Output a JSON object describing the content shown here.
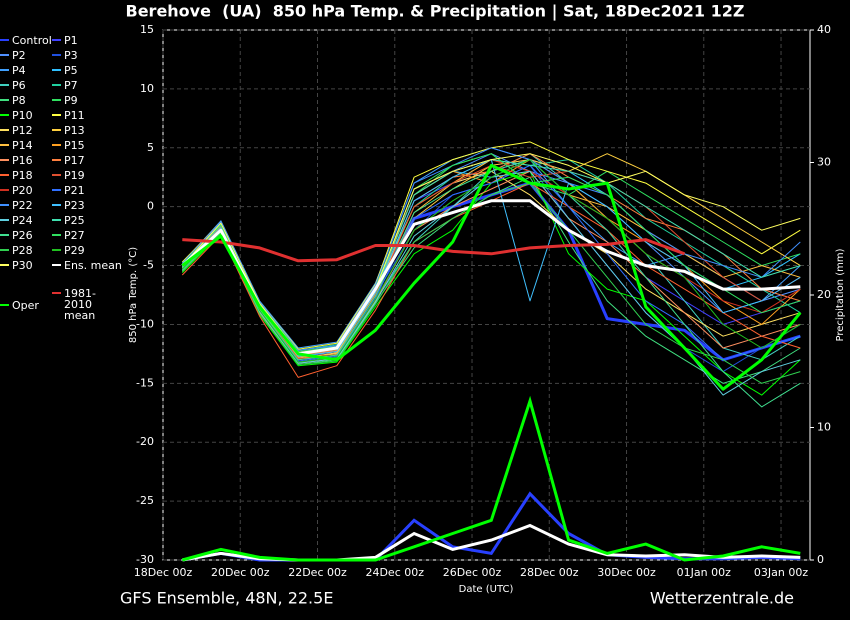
{
  "chart_data": {
    "type": "line",
    "title": "Berehove  (UA)  850 hPa Temp. & Precipitation | Sat, 18Dec2021 12Z",
    "y_label": "850 hPa Temp. (°C)",
    "y2_label": "Precipitation (mm)",
    "x_label": "Date (UTC)",
    "footer_left": "GFS Ensemble, 48N, 22.5E",
    "footer_right": "Wetterzentrale.de",
    "grid": true,
    "xlim": [
      0,
      402
    ],
    "xticks": [
      {
        "value": 0,
        "label": "18Dec 00z"
      },
      {
        "value": 48,
        "label": "20Dec 00z"
      },
      {
        "value": 96,
        "label": "22Dec 00z"
      },
      {
        "value": 144,
        "label": "24Dec 00z"
      },
      {
        "value": 192,
        "label": "26Dec 00z"
      },
      {
        "value": 240,
        "label": "28Dec 00z"
      },
      {
        "value": 288,
        "label": "30Dec 00z"
      },
      {
        "value": 336,
        "label": "01Jan 00z"
      },
      {
        "value": 384,
        "label": "03Jan 00z"
      }
    ],
    "ylim": [
      -30,
      15
    ],
    "yticks": [
      -30,
      -25,
      -20,
      -15,
      -10,
      -5,
      0,
      5,
      10,
      15
    ],
    "y2lim": [
      0,
      40
    ],
    "y2ticks": [
      0,
      10,
      20,
      30,
      40
    ],
    "x": [
      12,
      36,
      60,
      84,
      108,
      132,
      156,
      180,
      204,
      228,
      252,
      276,
      300,
      324,
      348,
      372,
      396
    ],
    "series": [
      {
        "name": "Control",
        "color": "#2840ff",
        "width": 3,
        "values": [
          -5,
          -2,
          -8.5,
          -12.5,
          -12,
          -7,
          -1,
          0,
          1,
          2,
          -2,
          -9.5,
          -10,
          -10.5,
          -13,
          -12,
          -11
        ],
        "precip": [
          0,
          0.5,
          0,
          0,
          0,
          0,
          3,
          1,
          0.5,
          5,
          2,
          0.4,
          0.2,
          0.1,
          0.1,
          0.2,
          0.1
        ]
      },
      {
        "name": "P1",
        "color": "#4040ff",
        "values": [
          -5,
          -1.8,
          -8.6,
          -12.8,
          -12.3,
          -7.2,
          0.5,
          2,
          3,
          4,
          1,
          -2,
          -6,
          -8,
          -10,
          -9,
          -8
        ]
      },
      {
        "name": "P2",
        "color": "#5090ff",
        "values": [
          -5.2,
          -1.5,
          -8.2,
          -12.4,
          -11.8,
          -6.8,
          1,
          3,
          4.5,
          3,
          2,
          0,
          -3,
          -6,
          -9,
          -8,
          -7
        ]
      },
      {
        "name": "P3",
        "color": "#2050e0",
        "values": [
          -5.5,
          -2.2,
          -9,
          -13,
          -12.6,
          -7.5,
          -2,
          1,
          2,
          3.5,
          -1,
          -5,
          -9,
          -12,
          -14,
          -12,
          -10
        ]
      },
      {
        "name": "P4",
        "color": "#40a0ff",
        "values": [
          -4.8,
          -1.2,
          -8,
          -12,
          -11.5,
          -6.5,
          2,
          4,
          5,
          4,
          0,
          -3,
          -5,
          -4,
          -6,
          -8,
          -5
        ]
      },
      {
        "name": "P5",
        "color": "#30c0ff",
        "values": [
          -5.1,
          -1.9,
          -8.8,
          -12.6,
          -12.2,
          -7,
          1.5,
          3,
          2.5,
          4,
          3,
          1,
          -2,
          -5,
          -7,
          -6,
          -4
        ]
      },
      {
        "name": "P6",
        "color": "#40d0c0",
        "values": [
          -5.3,
          -2,
          -8.5,
          -13.2,
          -12.8,
          -8,
          -3,
          0,
          3,
          4.5,
          2,
          -1,
          -4,
          -8,
          -12,
          -13,
          -11
        ]
      },
      {
        "name": "P7",
        "color": "#20d0a0",
        "values": [
          -4.9,
          -1.7,
          -8.4,
          -12.2,
          -11.7,
          -6.9,
          0,
          2.5,
          4,
          3.5,
          4,
          2,
          -1,
          -3,
          -5,
          -7,
          -9
        ]
      },
      {
        "name": "P8",
        "color": "#40e080",
        "values": [
          -5.4,
          -2.1,
          -8.9,
          -13.4,
          -13,
          -8.2,
          -3.5,
          -1,
          1,
          2.5,
          -3,
          -8,
          -11,
          -13,
          -15,
          -14,
          -12
        ]
      },
      {
        "name": "P9",
        "color": "#30e060",
        "values": [
          -5,
          -1.6,
          -8.3,
          -12.5,
          -12.1,
          -7.1,
          1,
          3.5,
          4.5,
          2,
          1,
          3,
          1,
          -1,
          -3,
          -5,
          -4
        ]
      },
      {
        "name": "P10",
        "color": "#00ff00",
        "values": [
          -5.6,
          -2.3,
          -9.2,
          -13.5,
          -13.2,
          -8.5,
          -4,
          -2,
          2,
          3,
          -4,
          -7,
          -8,
          -11,
          -14,
          -16,
          -13
        ]
      },
      {
        "name": "P11",
        "color": "#ffff40",
        "values": [
          -4.7,
          -1.3,
          -8.1,
          -12.1,
          -11.6,
          -6.6,
          2.5,
          4,
          5,
          5.5,
          4,
          3,
          2,
          0,
          -2,
          -4,
          -2
        ]
      },
      {
        "name": "P12",
        "color": "#ffe060",
        "values": [
          -5.2,
          -1.8,
          -8.7,
          -12.9,
          -12.4,
          -7.3,
          0,
          2,
          3,
          1,
          -2,
          -4,
          -7,
          -9,
          -11,
          -10,
          -9
        ]
      },
      {
        "name": "P13",
        "color": "#ffd040",
        "values": [
          -5,
          -1.5,
          -8.5,
          -12.7,
          -12.3,
          -7.4,
          -1,
          1.5,
          3.5,
          4,
          3,
          4.5,
          3,
          1,
          -1,
          -3,
          -5
        ]
      },
      {
        "name": "P14",
        "color": "#ffc040",
        "values": [
          -5.3,
          -1.9,
          -8.6,
          -12.8,
          -12.5,
          -7.6,
          -0.5,
          2,
          4,
          3,
          1,
          0,
          -2,
          -4,
          -6,
          -5,
          -6
        ]
      },
      {
        "name": "P15",
        "color": "#ffa020",
        "values": [
          -4.9,
          -1.4,
          -8.2,
          -12.3,
          -11.9,
          -6.8,
          1,
          3,
          2,
          4,
          2,
          -1,
          -3,
          -5,
          -8,
          -10,
          -7
        ]
      },
      {
        "name": "P16",
        "color": "#ff9060",
        "values": [
          -5.5,
          -2,
          -9,
          -13.3,
          -12.9,
          -8,
          -2,
          0,
          1.5,
          3,
          -1,
          -3,
          -6,
          -9,
          -12,
          -11,
          -10
        ]
      },
      {
        "name": "P17",
        "color": "#ff8040",
        "values": [
          -5.1,
          -1.7,
          -8.4,
          -12.6,
          -12.2,
          -7.2,
          0.5,
          2.5,
          3,
          4.5,
          2.5,
          1,
          -1,
          -2,
          -4,
          -7,
          -8
        ]
      },
      {
        "name": "P18",
        "color": "#ff6030",
        "values": [
          -5.8,
          -2.4,
          -9.3,
          -14.5,
          -13.5,
          -8.8,
          -3,
          -1,
          0.5,
          2,
          0,
          -2,
          -5,
          -7,
          -9,
          -11,
          -12
        ]
      },
      {
        "name": "P19",
        "color": "#e05030",
        "values": [
          -5.2,
          -1.9,
          -8.6,
          -12.9,
          -12.6,
          -7.5,
          0,
          2,
          3.5,
          2.5,
          3,
          2,
          0,
          -3,
          -6,
          -8,
          -6
        ]
      },
      {
        "name": "P20",
        "color": "#d03020",
        "values": [
          -5,
          -1.6,
          -8.3,
          -12.4,
          -12,
          -7,
          1.5,
          3,
          4,
          3,
          1,
          -1,
          -4,
          -6,
          -8,
          -9,
          -7
        ]
      },
      {
        "name": "P21",
        "color": "#3070ff",
        "values": [
          -5.3,
          -2,
          -8.8,
          -13.1,
          -12.7,
          -7.8,
          -1,
          1,
          2,
          3.5,
          0,
          -4,
          -8,
          -10,
          -13,
          -12,
          -11
        ]
      },
      {
        "name": "P22",
        "color": "#4090ff",
        "values": [
          -4.8,
          -1.3,
          -8.1,
          -12.2,
          -11.8,
          -6.7,
          2,
          3.5,
          5,
          4,
          2,
          1,
          -2,
          -4,
          -5,
          -6,
          -3
        ]
      },
      {
        "name": "P23",
        "color": "#40c0ff",
        "values": [
          -5.1,
          -1.8,
          -8.5,
          -12.7,
          -12.3,
          -7.3,
          0.5,
          2.5,
          4,
          -8,
          2,
          0,
          -3,
          -5,
          -9,
          -8,
          -6
        ]
      },
      {
        "name": "P24",
        "color": "#60d0e0",
        "values": [
          -5.4,
          -2.1,
          -8.9,
          -13.3,
          -12.9,
          -8.1,
          -2.5,
          0,
          2.5,
          3,
          -1,
          -5,
          -9,
          -12,
          -16,
          -14,
          -13
        ]
      },
      {
        "name": "P25",
        "color": "#40e0b0",
        "values": [
          -5,
          -1.6,
          -8.3,
          -12.5,
          -12.1,
          -7.1,
          1,
          3,
          4,
          3.5,
          3,
          2,
          0,
          -2,
          -4,
          -6,
          -5
        ]
      },
      {
        "name": "P26",
        "color": "#40e090",
        "values": [
          -5.2,
          -1.9,
          -8.7,
          -13,
          -12.6,
          -7.6,
          -0.5,
          1.5,
          3,
          4,
          1,
          -2,
          -6,
          -10,
          -14,
          -17,
          -15
        ]
      },
      {
        "name": "P27",
        "color": "#30e060",
        "values": [
          -4.9,
          -1.5,
          -8.2,
          -12.3,
          -11.9,
          -6.9,
          1.5,
          3.5,
          4.5,
          2,
          2.5,
          1,
          -2,
          -5,
          -7,
          -9,
          -8
        ]
      },
      {
        "name": "P28",
        "color": "#30d050",
        "values": [
          -5.5,
          -2.2,
          -9.1,
          -13.4,
          -13.1,
          -8.3,
          -3,
          -1,
          1,
          2,
          -2,
          -6,
          -10,
          -12,
          -13,
          -15,
          -14
        ]
      },
      {
        "name": "P29",
        "color": "#20c020",
        "values": [
          -5.3,
          -2,
          -8.8,
          -13.2,
          -12.8,
          -7.9,
          -2,
          0.5,
          2.5,
          4,
          1,
          -1,
          -4,
          -6,
          -10,
          -12,
          -10
        ]
      },
      {
        "name": "P30",
        "color": "#ffff60",
        "values": [
          -5,
          -1.4,
          -8.2,
          -12.4,
          -12,
          -7,
          1.5,
          3,
          4,
          4.5,
          3.5,
          2,
          3,
          1,
          0,
          -2,
          -1
        ]
      },
      {
        "name": "Ens. mean",
        "color": "#ffffff",
        "width": 3,
        "values": [
          -5,
          -2,
          -8.5,
          -12.5,
          -12,
          -7,
          -1.5,
          -0.5,
          0.5,
          0.5,
          -2,
          -3.8,
          -5,
          -5.5,
          -7,
          -7,
          -6.8
        ],
        "precip": [
          0,
          0.5,
          0.1,
          0,
          0,
          0.2,
          2,
          0.8,
          1.5,
          2.6,
          1.2,
          0.4,
          0.3,
          0.4,
          0.2,
          0.3,
          0.2
        ]
      },
      {
        "name": "1981-2010 mean",
        "color": "#e03030",
        "width": 3,
        "values": [
          -2.8,
          -3,
          -3.5,
          -4.6,
          -4.5,
          -3.3,
          -3.3,
          -3.8,
          -4,
          -3.5,
          -3.3,
          -3.2,
          -2.8,
          -4,
          null,
          null,
          null
        ]
      },
      {
        "name": "Oper",
        "color": "#00ff00",
        "width": 3,
        "values": [
          -5,
          -2.5,
          -8.5,
          -12.5,
          -13,
          -10.5,
          -6.5,
          -3,
          3.5,
          2,
          1.5,
          2,
          -8.5,
          -12,
          -15.5,
          -13,
          -9
        ],
        "precip": [
          0,
          0.8,
          0.2,
          0,
          0,
          0,
          1,
          2,
          3,
          12,
          1.5,
          0.5,
          1.2,
          0,
          0.3,
          1,
          0.5
        ]
      }
    ]
  }
}
